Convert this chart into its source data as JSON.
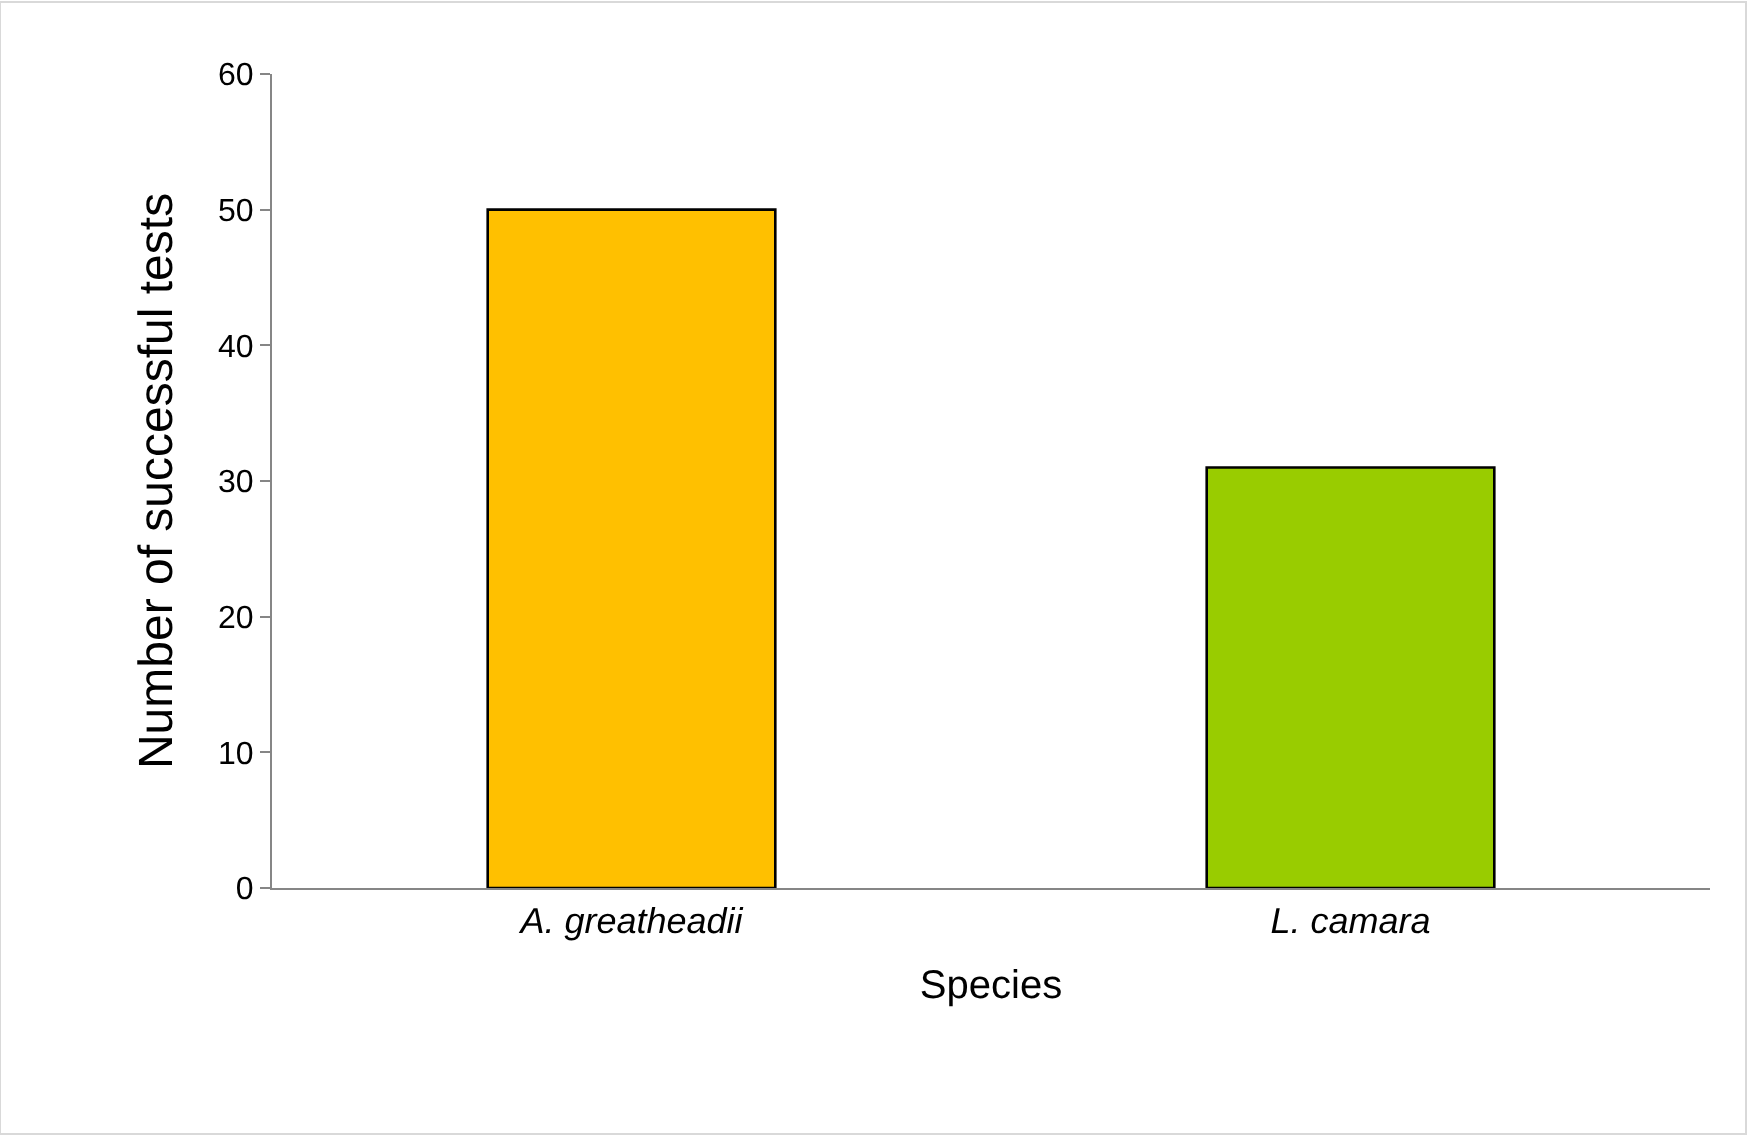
{
  "chart_data": {
    "type": "bar",
    "categories": [
      "A. greatheadii",
      "L. camara"
    ],
    "values": [
      50,
      31
    ],
    "colors": [
      "#ffc000",
      "#99cc00"
    ],
    "xlabel": "Species",
    "ylabel": "Number of successful tests",
    "ylim": [
      0,
      60
    ],
    "yticks": [
      0,
      10,
      20,
      30,
      40,
      50,
      60
    ]
  }
}
